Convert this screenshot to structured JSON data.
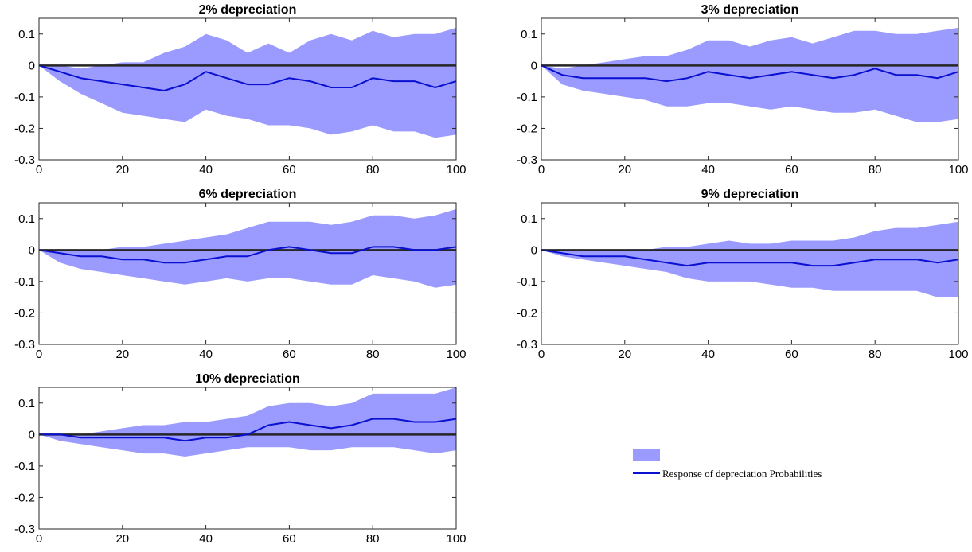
{
  "colors": {
    "band": "#9b9bff",
    "line": "#0a10d0",
    "zero_line": "#262626",
    "axis": "#262626"
  },
  "legend": {
    "line_label": "Response of depreciation Probabilities"
  },
  "chart_data": [
    {
      "type": "area",
      "title": "2% depreciation",
      "xlabel": "",
      "ylabel": "",
      "xlim": [
        0,
        100
      ],
      "ylim": [
        -0.3,
        0.15
      ],
      "xticks": [
        0,
        20,
        40,
        60,
        80,
        100
      ],
      "yticks": [
        0.1,
        0,
        -0.1,
        -0.2,
        -0.3
      ],
      "ytick_labels": [
        "0.1",
        "0",
        "-0.1",
        "-0.2",
        "-0.3"
      ],
      "x": [
        0,
        5,
        10,
        15,
        20,
        25,
        30,
        35,
        40,
        45,
        50,
        55,
        60,
        65,
        70,
        75,
        80,
        85,
        90,
        95,
        100
      ],
      "series": [
        {
          "role": "band-upper",
          "values": [
            0,
            0.0,
            -0.01,
            0.0,
            0.01,
            0.01,
            0.04,
            0.06,
            0.1,
            0.08,
            0.04,
            0.07,
            0.04,
            0.08,
            0.1,
            0.08,
            0.11,
            0.09,
            0.1,
            0.1,
            0.12
          ]
        },
        {
          "role": "band-lower",
          "values": [
            0,
            -0.05,
            -0.09,
            -0.12,
            -0.15,
            -0.16,
            -0.17,
            -0.18,
            -0.14,
            -0.16,
            -0.17,
            -0.19,
            -0.19,
            -0.2,
            -0.22,
            -0.21,
            -0.19,
            -0.21,
            -0.21,
            -0.23,
            -0.22
          ]
        },
        {
          "role": "response",
          "values": [
            0,
            -0.02,
            -0.04,
            -0.05,
            -0.06,
            -0.07,
            -0.08,
            -0.06,
            -0.02,
            -0.04,
            -0.06,
            -0.06,
            -0.04,
            -0.05,
            -0.07,
            -0.07,
            -0.04,
            -0.05,
            -0.05,
            -0.07,
            -0.05
          ]
        }
      ]
    },
    {
      "type": "area",
      "title": "3% depreciation",
      "xlabel": "",
      "ylabel": "",
      "xlim": [
        0,
        100
      ],
      "ylim": [
        -0.3,
        0.15
      ],
      "xticks": [
        0,
        20,
        40,
        60,
        80,
        100
      ],
      "yticks": [
        0.1,
        0,
        -0.1,
        -0.2,
        -0.3
      ],
      "ytick_labels": [
        "0.1",
        "0",
        "-0.1",
        "-0.2",
        "-0.3"
      ],
      "x": [
        0,
        5,
        10,
        15,
        20,
        25,
        30,
        35,
        40,
        45,
        50,
        55,
        60,
        65,
        70,
        75,
        80,
        85,
        90,
        95,
        100
      ],
      "series": [
        {
          "role": "band-upper",
          "values": [
            0,
            -0.01,
            0.0,
            0.01,
            0.02,
            0.03,
            0.03,
            0.05,
            0.08,
            0.08,
            0.06,
            0.08,
            0.09,
            0.07,
            0.09,
            0.11,
            0.11,
            0.1,
            0.1,
            0.11,
            0.12
          ]
        },
        {
          "role": "band-lower",
          "values": [
            0,
            -0.06,
            -0.08,
            -0.09,
            -0.1,
            -0.11,
            -0.13,
            -0.13,
            -0.12,
            -0.12,
            -0.13,
            -0.14,
            -0.13,
            -0.14,
            -0.15,
            -0.15,
            -0.14,
            -0.16,
            -0.18,
            -0.18,
            -0.17
          ]
        },
        {
          "role": "response",
          "values": [
            0,
            -0.03,
            -0.04,
            -0.04,
            -0.04,
            -0.04,
            -0.05,
            -0.04,
            -0.02,
            -0.03,
            -0.04,
            -0.03,
            -0.02,
            -0.03,
            -0.04,
            -0.03,
            -0.01,
            -0.03,
            -0.03,
            -0.04,
            -0.02
          ]
        }
      ]
    },
    {
      "type": "area",
      "title": "6% depreciation",
      "xlabel": "",
      "ylabel": "",
      "xlim": [
        0,
        100
      ],
      "ylim": [
        -0.3,
        0.15
      ],
      "xticks": [
        0,
        20,
        40,
        60,
        80,
        100
      ],
      "yticks": [
        0.1,
        0,
        -0.1,
        -0.2,
        -0.3
      ],
      "ytick_labels": [
        "0.1",
        "0",
        "-0.1",
        "-0.2",
        "-0.3"
      ],
      "x": [
        0,
        5,
        10,
        15,
        20,
        25,
        30,
        35,
        40,
        45,
        50,
        55,
        60,
        65,
        70,
        75,
        80,
        85,
        90,
        95,
        100
      ],
      "series": [
        {
          "role": "band-upper",
          "values": [
            0,
            0.0,
            0.0,
            0.0,
            0.01,
            0.01,
            0.02,
            0.03,
            0.04,
            0.05,
            0.07,
            0.09,
            0.09,
            0.09,
            0.08,
            0.09,
            0.11,
            0.11,
            0.1,
            0.11,
            0.13
          ]
        },
        {
          "role": "band-lower",
          "values": [
            0,
            -0.04,
            -0.06,
            -0.07,
            -0.08,
            -0.09,
            -0.1,
            -0.11,
            -0.1,
            -0.09,
            -0.1,
            -0.09,
            -0.09,
            -0.1,
            -0.11,
            -0.11,
            -0.08,
            -0.09,
            -0.1,
            -0.12,
            -0.11
          ]
        },
        {
          "role": "response",
          "values": [
            0,
            -0.01,
            -0.02,
            -0.02,
            -0.03,
            -0.03,
            -0.04,
            -0.04,
            -0.03,
            -0.02,
            -0.02,
            0.0,
            0.01,
            0.0,
            -0.01,
            -0.01,
            0.01,
            0.01,
            0.0,
            0.0,
            0.01
          ]
        }
      ]
    },
    {
      "type": "area",
      "title": "9% depreciation",
      "xlabel": "",
      "ylabel": "",
      "xlim": [
        0,
        100
      ],
      "ylim": [
        -0.3,
        0.15
      ],
      "xticks": [
        0,
        20,
        40,
        60,
        80,
        100
      ],
      "yticks": [
        0.1,
        0,
        -0.1,
        -0.2,
        -0.3
      ],
      "ytick_labels": [
        "0.1",
        "0",
        "-0.1",
        "-0.2",
        "-0.3"
      ],
      "x": [
        0,
        5,
        10,
        15,
        20,
        25,
        30,
        35,
        40,
        45,
        50,
        55,
        60,
        65,
        70,
        75,
        80,
        85,
        90,
        95,
        100
      ],
      "series": [
        {
          "role": "band-upper",
          "values": [
            0,
            0.0,
            0.0,
            0.0,
            0.0,
            0.0,
            0.01,
            0.01,
            0.02,
            0.03,
            0.02,
            0.02,
            0.03,
            0.03,
            0.03,
            0.04,
            0.06,
            0.07,
            0.07,
            0.08,
            0.09
          ]
        },
        {
          "role": "band-lower",
          "values": [
            0,
            -0.02,
            -0.03,
            -0.04,
            -0.05,
            -0.06,
            -0.07,
            -0.09,
            -0.1,
            -0.1,
            -0.1,
            -0.11,
            -0.12,
            -0.12,
            -0.13,
            -0.13,
            -0.13,
            -0.13,
            -0.13,
            -0.15,
            -0.15
          ]
        },
        {
          "role": "response",
          "values": [
            0,
            -0.01,
            -0.02,
            -0.02,
            -0.02,
            -0.03,
            -0.04,
            -0.05,
            -0.04,
            -0.04,
            -0.04,
            -0.04,
            -0.04,
            -0.05,
            -0.05,
            -0.04,
            -0.03,
            -0.03,
            -0.03,
            -0.04,
            -0.03
          ]
        }
      ]
    },
    {
      "type": "area",
      "title": "10% depreciation",
      "xlabel": "",
      "ylabel": "",
      "xlim": [
        0,
        100
      ],
      "ylim": [
        -0.3,
        0.15
      ],
      "xticks": [
        0,
        20,
        40,
        60,
        80,
        100
      ],
      "yticks": [
        0.1,
        0,
        -0.1,
        -0.2,
        -0.3
      ],
      "ytick_labels": [
        "0.1",
        "0",
        "-0.1",
        "-0.2",
        "-0.3"
      ],
      "x": [
        0,
        5,
        10,
        15,
        20,
        25,
        30,
        35,
        40,
        45,
        50,
        55,
        60,
        65,
        70,
        75,
        80,
        85,
        90,
        95,
        100
      ],
      "series": [
        {
          "role": "band-upper",
          "values": [
            0,
            0.0,
            0.0,
            0.01,
            0.02,
            0.03,
            0.03,
            0.04,
            0.04,
            0.05,
            0.06,
            0.09,
            0.1,
            0.1,
            0.09,
            0.1,
            0.13,
            0.13,
            0.13,
            0.13,
            0.15
          ]
        },
        {
          "role": "band-lower",
          "values": [
            0,
            -0.02,
            -0.03,
            -0.04,
            -0.05,
            -0.06,
            -0.06,
            -0.07,
            -0.06,
            -0.05,
            -0.04,
            -0.04,
            -0.04,
            -0.05,
            -0.05,
            -0.04,
            -0.04,
            -0.04,
            -0.05,
            -0.06,
            -0.05
          ]
        },
        {
          "role": "response",
          "values": [
            0,
            0.0,
            -0.01,
            -0.01,
            -0.01,
            -0.01,
            -0.01,
            -0.02,
            -0.01,
            -0.01,
            0.0,
            0.03,
            0.04,
            0.03,
            0.02,
            0.03,
            0.05,
            0.05,
            0.04,
            0.04,
            0.05
          ]
        }
      ]
    }
  ]
}
